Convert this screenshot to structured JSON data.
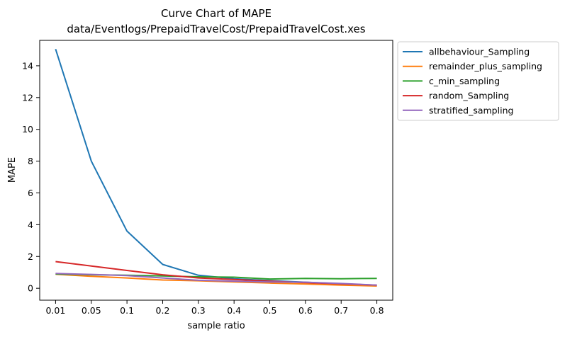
{
  "chart_data": {
    "type": "line",
    "title_line1": "Curve Chart of MAPE",
    "title_line2": "data/Eventlogs/PrepaidTravelCost/PrepaidTravelCost.xes",
    "xlabel": "sample ratio",
    "ylabel": "MAPE",
    "categories": [
      "0.01",
      "0.05",
      "0.1",
      "0.2",
      "0.3",
      "0.4",
      "0.5",
      "0.6",
      "0.7",
      "0.8"
    ],
    "yticks": [
      "0",
      "2",
      "4",
      "6",
      "8",
      "10",
      "12",
      "14"
    ],
    "ylim": [
      -0.75,
      15.6
    ],
    "grid": false,
    "legend_position": "outside-top-right",
    "series": [
      {
        "name": "allbehaviour_Sampling",
        "color": "#1f77b4",
        "values": [
          15.05,
          8.0,
          3.6,
          1.5,
          0.82,
          0.6,
          0.48,
          0.38,
          0.28,
          0.18
        ]
      },
      {
        "name": "remainder_plus_sampling",
        "color": "#ff7f0e",
        "values": [
          0.88,
          0.75,
          0.65,
          0.52,
          0.47,
          0.4,
          0.33,
          0.27,
          0.2,
          0.14
        ]
      },
      {
        "name": "c_min_sampling",
        "color": "#2ca02c",
        "values": [
          0.9,
          0.85,
          0.82,
          0.78,
          0.72,
          0.7,
          0.58,
          0.62,
          0.6,
          0.62
        ]
      },
      {
        "name": "random_Sampling",
        "color": "#d62728",
        "values": [
          1.68,
          1.4,
          1.12,
          0.85,
          0.65,
          0.55,
          0.45,
          0.35,
          0.28,
          0.2
        ]
      },
      {
        "name": "stratified_sampling",
        "color": "#9467bd",
        "values": [
          0.93,
          0.87,
          0.8,
          0.65,
          0.5,
          0.45,
          0.4,
          0.38,
          0.3,
          0.2
        ]
      }
    ]
  }
}
